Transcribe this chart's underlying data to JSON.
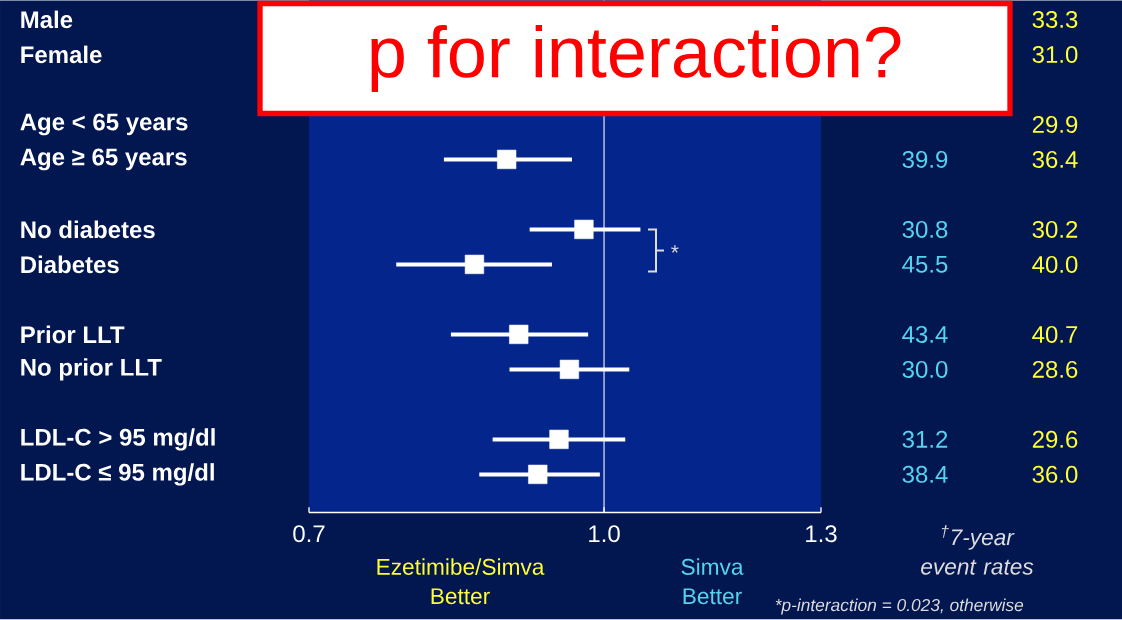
{
  "chart_data": [
    {
      "type": "scatter",
      "orientation": "horizontal",
      "log": "x",
      "marker": "square",
      "categories": [
        "Male",
        "Female",
        null,
        "Age < 65 years",
        "Age ≥ 65 years",
        null,
        "No diabetes",
        "Diabetes",
        null,
        "Prior LLT",
        "No prior LLT",
        null,
        "LDL-C > 95 mg/dl",
        "LDL-C ≤ 95 mg/dl"
      ],
      "series": [
        {
          "color": "#ffffff",
          "values": [
            null,
            null,
            null,
            null,
            0.889,
            null,
            0.976,
            0.855,
            null,
            0.902,
            0.959,
            null,
            0.947,
            0.923
          ],
          "errors": [
            null,
            null,
            null,
            null,
            [
              0.824,
              0.962
            ],
            null,
            [
              0.914,
              1.045
            ],
            [
              0.778,
              0.939
            ],
            null,
            [
              0.831,
              0.981
            ],
            [
              0.892,
              1.031
            ],
            null,
            [
              0.874,
              1.026
            ],
            [
              0.86,
              0.995
            ]
          ]
        }
      ],
      "xlim": [
        0.7,
        1.3
      ],
      "xticks": [
        0.7,
        {
          "value": 1.0,
          "label": "1.0"
        },
        1.3
      ],
      "ref_lines": [
        {
          "axis": "x",
          "value": 1.0,
          "color": "#ffffff"
        }
      ],
      "annotations": [
        "p for interaction?",
        "*",
        "Ezetimibe/Simva Better",
        "Simva Better",
        "*p-interaction = 0.023, otherwise"
      ]
    },
    {
      "type": "other",
      "xlabel": "$^{†}$7-year event rates",
      "annotations": [
        "33.3",
        "31.0",
        "29.9",
        "39.9",
        "36.4",
        "30.8",
        "30.2",
        "45.5",
        "40.0",
        "43.4",
        "40.7",
        "30.0",
        "28.6",
        "31.2",
        "29.6",
        "38.4",
        "36.0"
      ]
    }
  ]
}
